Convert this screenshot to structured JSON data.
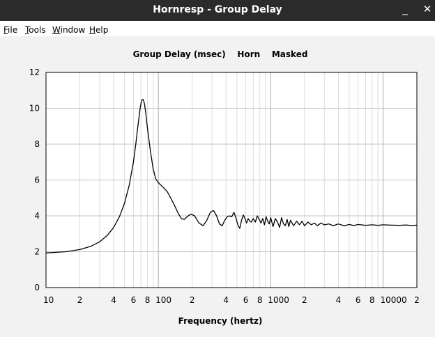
{
  "window": {
    "title": "Hornresp - Group Delay",
    "minimize_glyph": "_",
    "close_glyph": "✕"
  },
  "menu": [
    {
      "label": "File",
      "accel": "F"
    },
    {
      "label": "Tools",
      "accel": "T"
    },
    {
      "label": "Window",
      "accel": "W"
    },
    {
      "label": "Help",
      "accel": "H"
    }
  ],
  "chart_data": {
    "type": "line",
    "title": "Group Delay (msec)    Horn    Masked",
    "xlabel": "Frequency (hertz)",
    "ylabel": "",
    "x_scale": "log",
    "xlim": [
      10,
      20000
    ],
    "ylim": [
      0,
      12
    ],
    "grid": true,
    "y_ticks": [
      "0",
      "2",
      "4",
      "6",
      "8",
      "10",
      "12"
    ],
    "x_tick_labels": [
      {
        "value": 10,
        "label": "10"
      },
      {
        "value": 20,
        "label": "2"
      },
      {
        "value": 40,
        "label": "4"
      },
      {
        "value": 60,
        "label": "6"
      },
      {
        "value": 80,
        "label": "8"
      },
      {
        "value": 100,
        "label": "100"
      },
      {
        "value": 200,
        "label": "2"
      },
      {
        "value": 400,
        "label": "4"
      },
      {
        "value": 600,
        "label": "6"
      },
      {
        "value": 800,
        "label": "8"
      },
      {
        "value": 1000,
        "label": "1000"
      },
      {
        "value": 2000,
        "label": "2"
      },
      {
        "value": 4000,
        "label": "4"
      },
      {
        "value": 6000,
        "label": "6"
      },
      {
        "value": 8000,
        "label": "8"
      },
      {
        "value": 10000,
        "label": "10000"
      },
      {
        "value": 20000,
        "label": "2"
      }
    ],
    "series": [
      {
        "color": "#000000",
        "x": [
          10,
          15,
          20,
          25,
          30,
          35,
          40,
          45,
          50,
          55,
          60,
          63,
          66,
          69,
          71,
          73,
          75,
          77,
          80,
          85,
          90,
          95,
          100,
          110,
          120,
          130,
          140,
          150,
          160,
          170,
          180,
          195,
          210,
          230,
          250,
          270,
          290,
          310,
          330,
          350,
          370,
          390,
          410,
          430,
          450,
          470,
          490,
          510,
          530,
          550,
          570,
          590,
          610,
          630,
          650,
          670,
          700,
          730,
          760,
          790,
          820,
          850,
          880,
          910,
          940,
          970,
          1000,
          1050,
          1100,
          1150,
          1200,
          1250,
          1300,
          1350,
          1400,
          1450,
          1500,
          1600,
          1700,
          1800,
          1900,
          2000,
          2150,
          2300,
          2450,
          2600,
          2800,
          3000,
          3300,
          3600,
          4000,
          4500,
          5000,
          5500,
          6000,
          7000,
          8000,
          9000,
          10000,
          12000,
          14000,
          16000,
          18000,
          20000
        ],
        "y": [
          1.93,
          2.0,
          2.12,
          2.3,
          2.55,
          2.9,
          3.35,
          3.95,
          4.7,
          5.7,
          7.0,
          8.0,
          9.1,
          10.05,
          10.45,
          10.5,
          10.3,
          9.8,
          8.9,
          7.6,
          6.6,
          6.05,
          5.85,
          5.6,
          5.35,
          4.95,
          4.55,
          4.15,
          3.85,
          3.8,
          3.95,
          4.1,
          4.0,
          3.6,
          3.45,
          3.75,
          4.2,
          4.3,
          4.0,
          3.55,
          3.45,
          3.75,
          3.95,
          4.0,
          3.95,
          4.2,
          3.9,
          3.5,
          3.3,
          3.75,
          4.05,
          3.85,
          3.6,
          3.85,
          3.7,
          3.65,
          3.85,
          3.65,
          4.0,
          3.8,
          3.6,
          3.85,
          3.5,
          3.95,
          3.7,
          3.55,
          3.9,
          3.4,
          3.85,
          3.65,
          3.35,
          3.9,
          3.55,
          3.45,
          3.8,
          3.4,
          3.75,
          3.45,
          3.7,
          3.5,
          3.7,
          3.45,
          3.65,
          3.5,
          3.6,
          3.45,
          3.6,
          3.5,
          3.55,
          3.45,
          3.55,
          3.45,
          3.52,
          3.46,
          3.52,
          3.47,
          3.5,
          3.47,
          3.5,
          3.48,
          3.47,
          3.49,
          3.46,
          3.48
        ]
      }
    ]
  }
}
